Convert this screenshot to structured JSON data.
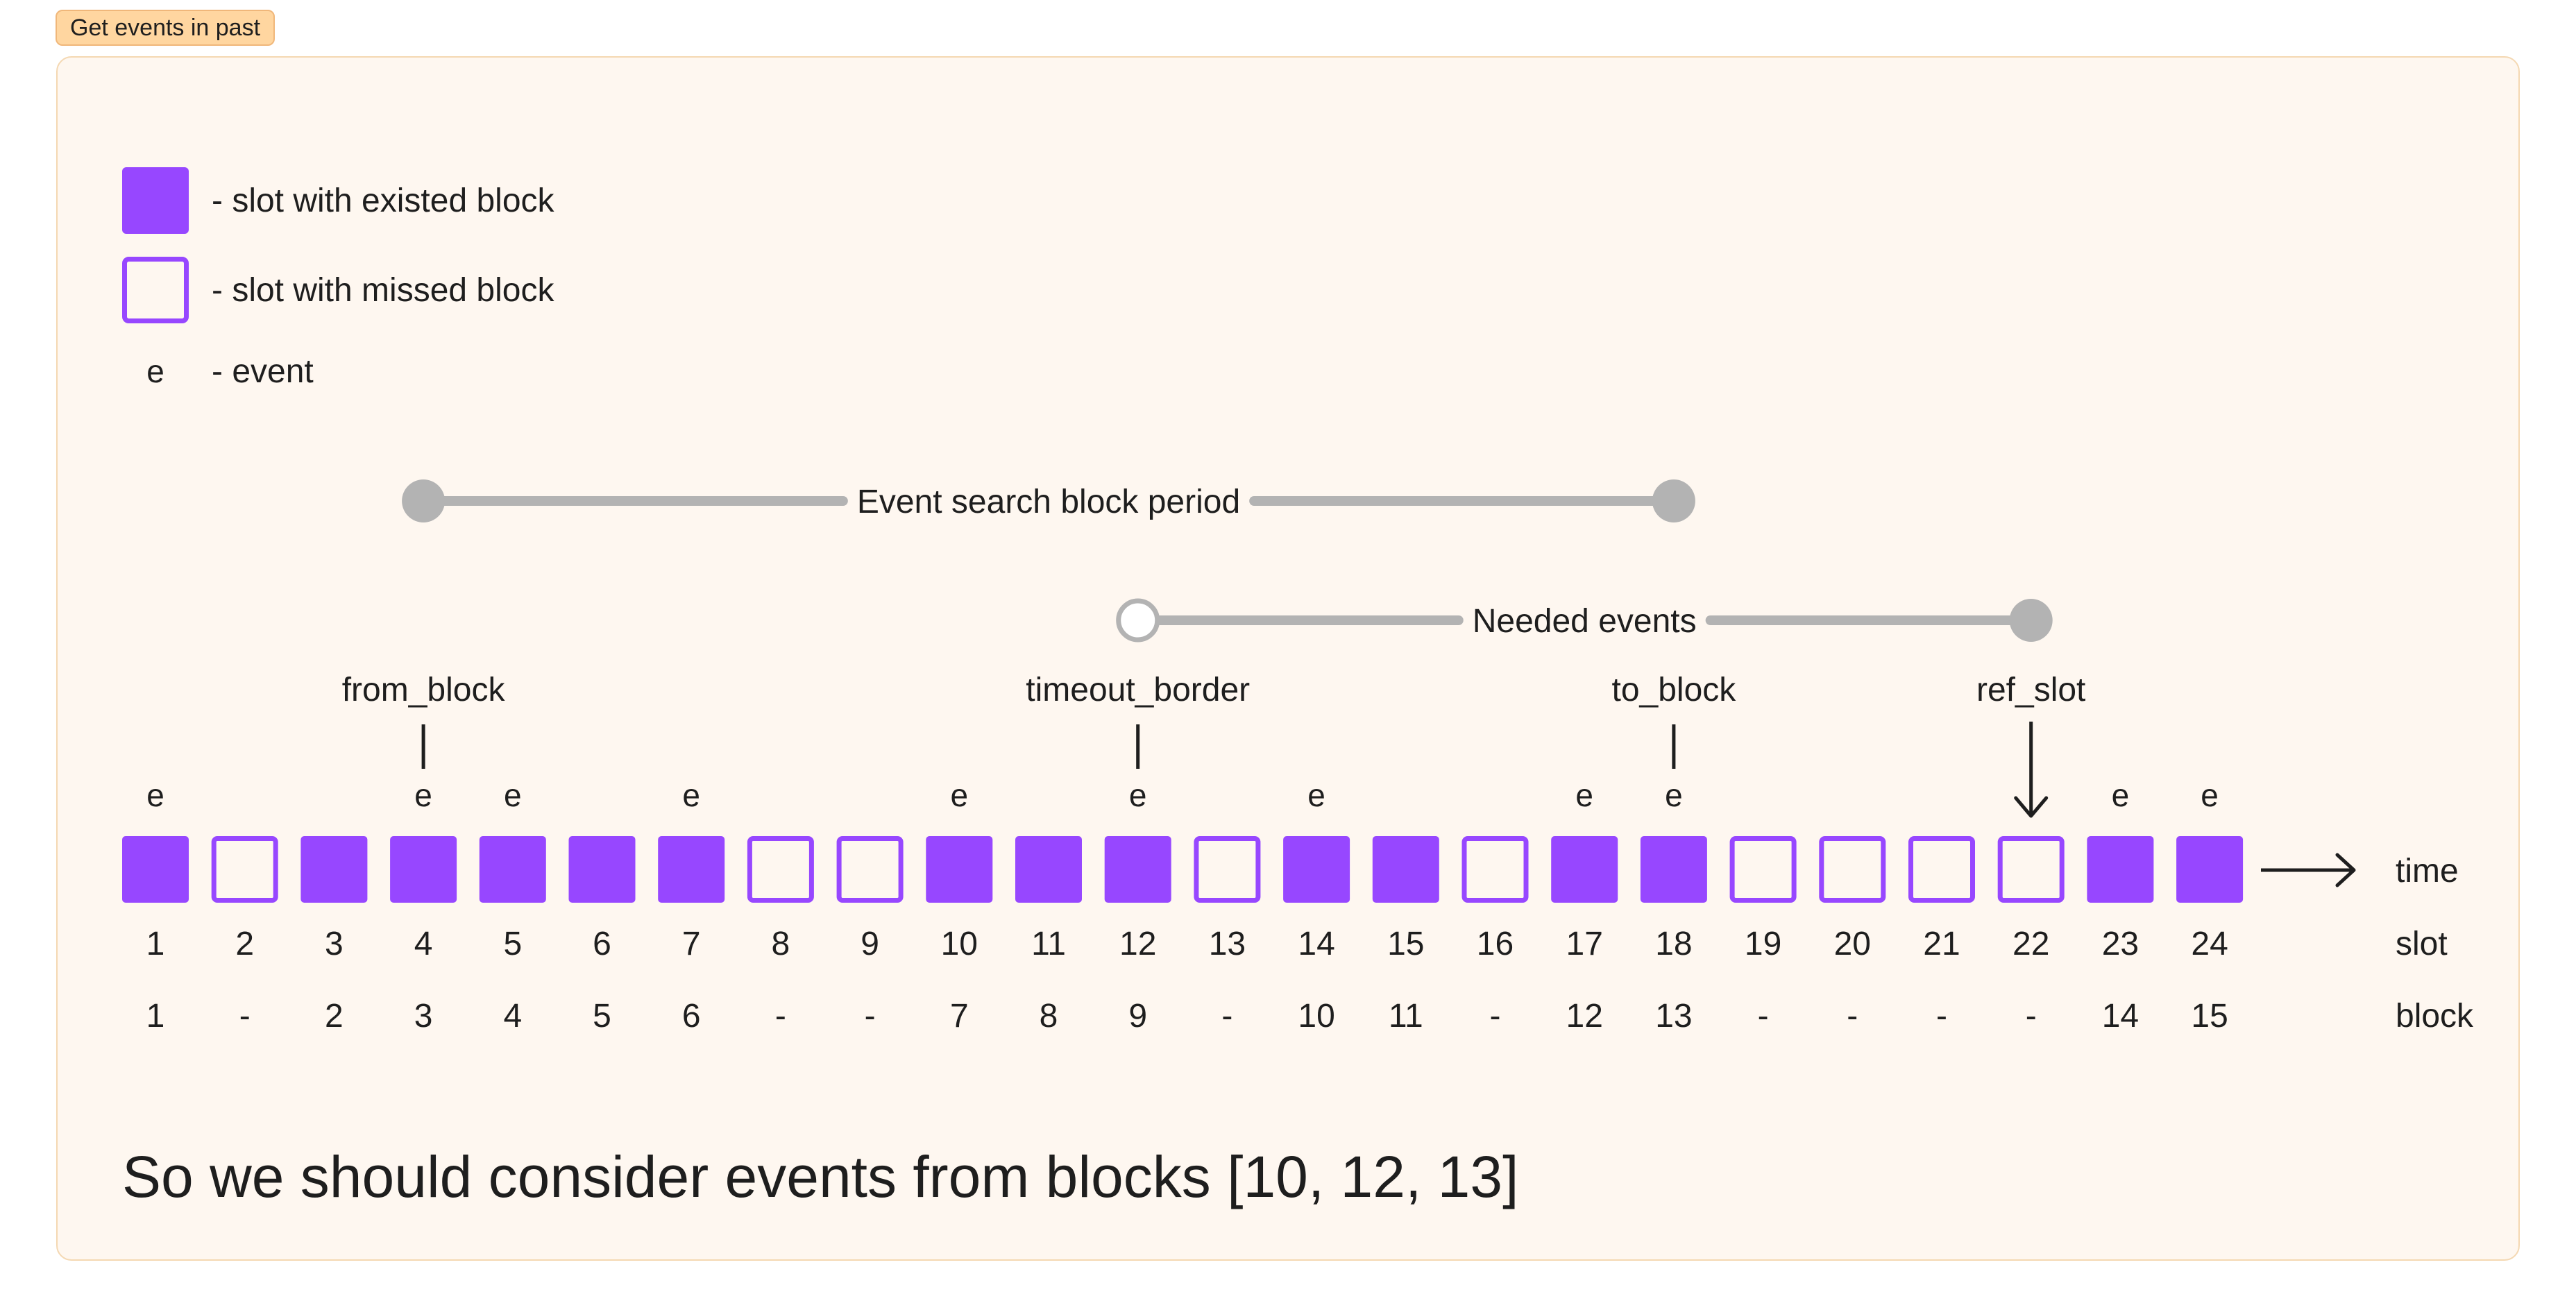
{
  "frame": {
    "title": "Get events in past"
  },
  "legend": {
    "existed": "- slot with existed block",
    "missed": "- slot with missed block",
    "event_symbol": "e",
    "event": "- event"
  },
  "ranges": {
    "search_period": {
      "label": "Event search block period",
      "from_slot": 4,
      "to_slot": 18,
      "start_filled": true,
      "end_filled": true
    },
    "needed_events": {
      "label": "Needed events",
      "from_slot": 12,
      "to_slot": 22,
      "start_filled": false,
      "end_filled": true
    }
  },
  "markers": [
    {
      "label": "from_block",
      "slot": 4,
      "arrow": false
    },
    {
      "label": "timeout_border",
      "slot": 12,
      "arrow": false
    },
    {
      "label": "to_block",
      "slot": 18,
      "arrow": false
    },
    {
      "label": "ref_slot",
      "slot": 22,
      "arrow": true
    }
  ],
  "slots": [
    {
      "slot": "1",
      "block": "1",
      "existed": true,
      "event": true
    },
    {
      "slot": "2",
      "block": "-",
      "existed": false,
      "event": false
    },
    {
      "slot": "3",
      "block": "2",
      "existed": true,
      "event": false
    },
    {
      "slot": "4",
      "block": "3",
      "existed": true,
      "event": true
    },
    {
      "slot": "5",
      "block": "4",
      "existed": true,
      "event": true
    },
    {
      "slot": "6",
      "block": "5",
      "existed": true,
      "event": false
    },
    {
      "slot": "7",
      "block": "6",
      "existed": true,
      "event": true
    },
    {
      "slot": "8",
      "block": "-",
      "existed": false,
      "event": false
    },
    {
      "slot": "9",
      "block": "-",
      "existed": false,
      "event": false
    },
    {
      "slot": "10",
      "block": "7",
      "existed": true,
      "event": true
    },
    {
      "slot": "11",
      "block": "8",
      "existed": true,
      "event": false
    },
    {
      "slot": "12",
      "block": "9",
      "existed": true,
      "event": true
    },
    {
      "slot": "13",
      "block": "-",
      "existed": false,
      "event": false
    },
    {
      "slot": "14",
      "block": "10",
      "existed": true,
      "event": true
    },
    {
      "slot": "15",
      "block": "11",
      "existed": true,
      "event": false
    },
    {
      "slot": "16",
      "block": "-",
      "existed": false,
      "event": false
    },
    {
      "slot": "17",
      "block": "12",
      "existed": true,
      "event": true
    },
    {
      "slot": "18",
      "block": "13",
      "existed": true,
      "event": true
    },
    {
      "slot": "19",
      "block": "-",
      "existed": false,
      "event": false
    },
    {
      "slot": "20",
      "block": "-",
      "existed": false,
      "event": false
    },
    {
      "slot": "21",
      "block": "-",
      "existed": false,
      "event": false
    },
    {
      "slot": "22",
      "block": "-",
      "existed": false,
      "event": false
    },
    {
      "slot": "23",
      "block": "14",
      "existed": true,
      "event": true
    },
    {
      "slot": "24",
      "block": "15",
      "existed": true,
      "event": true
    }
  ],
  "row_labels": {
    "time": "time",
    "slot": "slot",
    "block": "block"
  },
  "summary": "So we should consider events from blocks [10, 12, 13]",
  "colors": {
    "block": "#9747ff",
    "range": "#b3b3b3",
    "text": "#1e1e1e",
    "frame_bg": "#fef7f0",
    "frame_border": "#f4d8b2",
    "tag_bg": "#ffd6a0"
  }
}
